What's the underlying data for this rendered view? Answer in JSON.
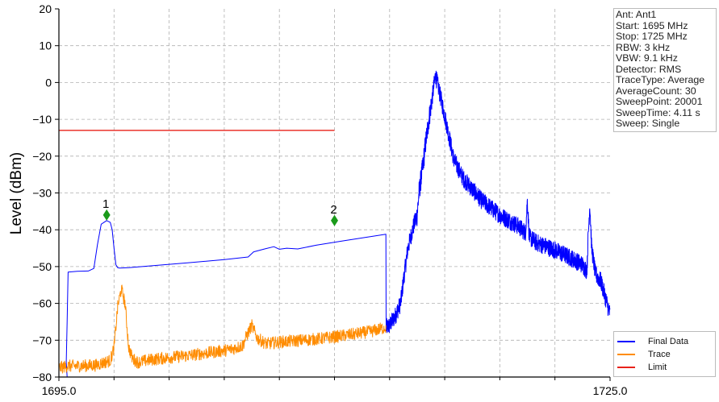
{
  "chart_data": {
    "type": "line",
    "ylabel": "Level (dBm)",
    "xlim": [
      1695.0,
      1725.0
    ],
    "ylim": [
      -80,
      20
    ],
    "x_ticks": [
      1695.0,
      1725.0
    ],
    "x_tick_labels": [
      "1695.0",
      "1725.0"
    ],
    "x_minor_ticks": [
      1698.0,
      1701.0,
      1704.0,
      1707.0,
      1710.0,
      1713.0,
      1716.0,
      1719.0,
      1722.0
    ],
    "y_ticks": [
      20,
      10,
      0,
      -10,
      -20,
      -30,
      -40,
      -50,
      -60,
      -70,
      -80
    ],
    "y_tick_labels": [
      "20",
      "10",
      "0",
      "−10",
      "−20",
      "−30",
      "−40",
      "−50",
      "−60",
      "−70",
      "−80"
    ],
    "grid": true,
    "legend_position": "bottom-right",
    "series": [
      {
        "name": "Final Data",
        "color": "#0000ff",
        "x": [
          1695.4,
          1695.45,
          1695.5,
          1696.0,
          1696.6,
          1696.9,
          1697.1,
          1697.3,
          1697.6,
          1697.8,
          1697.9,
          1698.0,
          1698.1,
          1698.2,
          1698.3,
          1698.8,
          1700.0,
          1702.0,
          1704.0,
          1705.3,
          1705.6,
          1706.2,
          1706.7,
          1707.0,
          1707.4,
          1708.0,
          1709.0,
          1710.5,
          1712.8,
          1712.81,
          1712.82,
          1713.0,
          1713.3,
          1713.6,
          1713.8,
          1714.0,
          1714.3,
          1714.5,
          1714.6,
          1714.8,
          1715.0,
          1715.2,
          1715.5,
          1716.0,
          1716.5,
          1717.0,
          1718.0,
          1719.0,
          1720.0,
          1720.4,
          1720.5,
          1720.6,
          1721.0,
          1722.0,
          1723.0,
          1723.5,
          1723.7,
          1723.75,
          1723.8,
          1723.9,
          1724.0,
          1724.2,
          1724.5,
          1725.0
        ],
        "y": [
          -76,
          -65,
          -51.5,
          -51.3,
          -51.2,
          -50.5,
          -44,
          -38.5,
          -37.5,
          -38,
          -40,
          -45,
          -49.5,
          -50.3,
          -50.4,
          -50.3,
          -49.8,
          -49,
          -48.1,
          -47.4,
          -46,
          -45.2,
          -44.6,
          -45.3,
          -45,
          -45.2,
          -44.2,
          -43,
          -41.2,
          -67,
          -66.5,
          -66,
          -63.5,
          -60,
          -52,
          -45,
          -39,
          -36,
          -30,
          -23,
          -15,
          -8,
          2,
          -9,
          -21,
          -26,
          -32,
          -36,
          -39,
          -40.8,
          -32,
          -42,
          -43.5,
          -45.5,
          -48,
          -49.5,
          -51,
          -50,
          -43,
          -33,
          -45,
          -52,
          -54,
          -63
        ]
      },
      {
        "name": "Trace",
        "color": "#ff8c00",
        "x": [
          1695.0,
          1695.5,
          1696.0,
          1697.0,
          1697.8,
          1698.0,
          1698.2,
          1698.4,
          1698.6,
          1698.8,
          1699.0,
          1699.3,
          1700.0,
          1701.0,
          1702.0,
          1703.0,
          1704.0,
          1704.5,
          1705.0,
          1705.2,
          1705.5,
          1705.8,
          1706.3,
          1707.0,
          1708.0,
          1709.0,
          1710.0,
          1711.0,
          1712.0,
          1712.8
        ],
        "y": [
          -77.5,
          -77,
          -77,
          -76.8,
          -75.5,
          -72,
          -61,
          -56,
          -60,
          -72,
          -75,
          -76,
          -75.3,
          -74.7,
          -74.2,
          -73.5,
          -72.8,
          -72.3,
          -71.5,
          -69,
          -66,
          -69.5,
          -71,
          -70.5,
          -70.1,
          -69.7,
          -69.1,
          -68.4,
          -67.6,
          -66.5
        ]
      },
      {
        "name": "Limit",
        "color": "#e8221a",
        "x": [
          1695.0,
          1710.0
        ],
        "y": [
          -13,
          -13
        ]
      }
    ],
    "markers": [
      {
        "label": "1",
        "x": 1697.6,
        "y": -36,
        "color": "#1a9a1a"
      },
      {
        "label": "2",
        "x": 1710.0,
        "y": -37.5,
        "color": "#1a9a1a"
      }
    ]
  },
  "info_panel": [
    "Ant: Ant1",
    "Start: 1695 MHz",
    "Stop: 1725 MHz",
    "RBW: 3 kHz",
    "VBW: 9.1 kHz",
    "Detector: RMS",
    "TraceType: Average",
    "AverageCount: 30",
    "SweepPoint: 20001",
    "SweepTime: 4.11 s",
    "Sweep: Single"
  ],
  "legend": {
    "items": [
      {
        "label": "Final Data",
        "color": "#0000ff"
      },
      {
        "label": "Trace",
        "color": "#ff8c00"
      },
      {
        "label": "Limit",
        "color": "#e8221a"
      }
    ]
  }
}
